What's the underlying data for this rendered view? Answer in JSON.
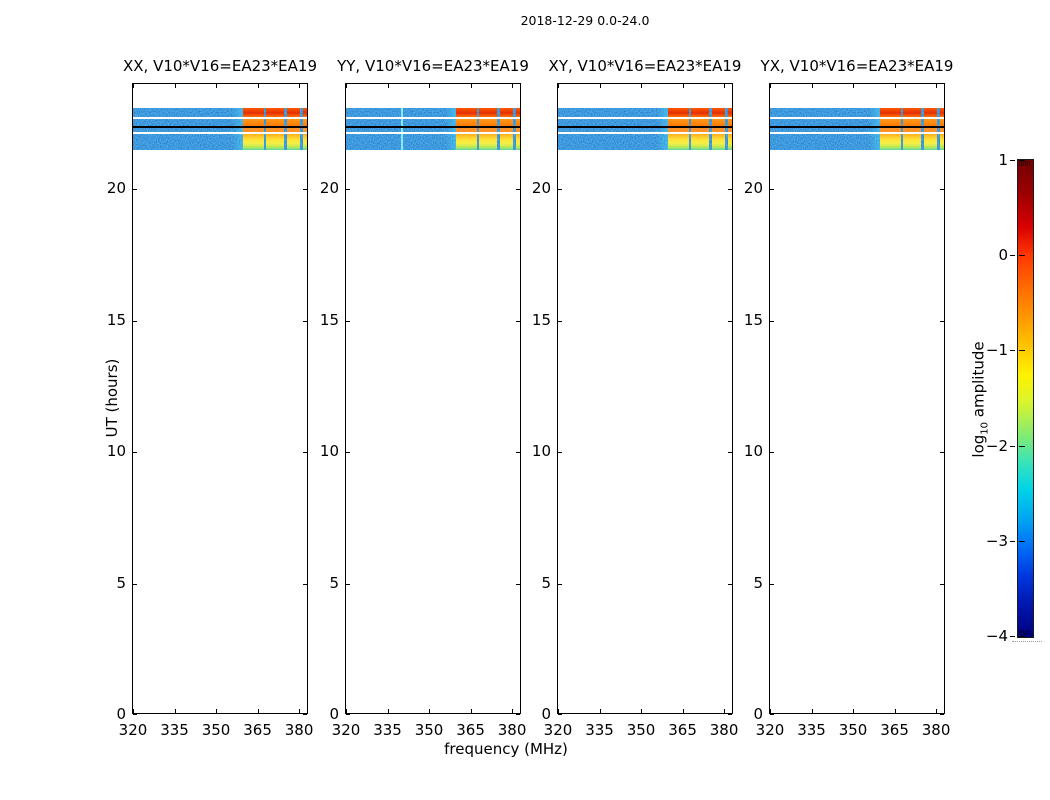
{
  "figure_title": "2018-12-29 0.0-24.0",
  "chart_data": {
    "type": "heatmap",
    "suptitle": "2018-12-29 0.0-24.0",
    "n_panels": 4,
    "baseline": "V10*V16=EA23*EA19",
    "panels": [
      {
        "polarization": "XX",
        "title": "XX, V10*V16=EA23*EA19"
      },
      {
        "polarization": "YY",
        "title": "YY, V10*V16=EA23*EA19",
        "vertical_feature_mhz": 340
      },
      {
        "polarization": "XY",
        "title": "XY, V10*V16=EA23*EA19"
      },
      {
        "polarization": "YX",
        "title": "YX, V10*V16=EA23*EA19"
      }
    ],
    "xlabel": "frequency (MHz)",
    "ylabel": "UT (hours)",
    "xlim": [
      320,
      384
    ],
    "ylim": [
      0,
      24
    ],
    "x_ticks": [
      320,
      335,
      350,
      365,
      380
    ],
    "y_ticks": [
      0,
      5,
      10,
      15,
      20
    ],
    "colorbar": {
      "label": "log10 amplitude",
      "label_parts": {
        "prefix": "log",
        "sub": "10",
        "suffix": " amplitude"
      },
      "ticks": [
        1,
        0,
        -1,
        -2,
        -3,
        -4
      ],
      "vmin": -4,
      "vmax": 1,
      "colormap": "jet"
    },
    "observed_time_range_ut": [
      21.5,
      23.05
    ],
    "background_level_log10": -3.0,
    "time_gap_rows_ut": [
      22.72,
      22.17
    ],
    "flagged_black_row_ut": 22.35,
    "rfi_blocks": {
      "freq_ranges_mhz": [
        [
          360.0,
          367.4
        ],
        [
          368.2,
          374.7
        ],
        [
          375.8,
          380.6
        ],
        [
          381.7,
          384.0
        ]
      ],
      "time_rows_ut": [
        {
          "ut": [
            22.75,
            23.05
          ],
          "level_log10": 0.3
        },
        {
          "ut": [
            22.45,
            22.7
          ],
          "level_log10": 0.0
        },
        {
          "ut": [
            22.2,
            22.32
          ],
          "level_log10": -0.1
        },
        {
          "ut": [
            21.55,
            22.12
          ],
          "level_log10": -1.0
        }
      ]
    }
  }
}
